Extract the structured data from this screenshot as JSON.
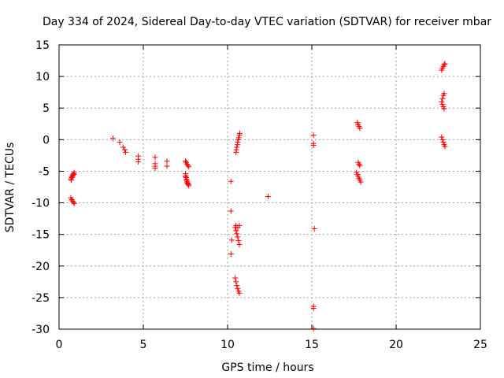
{
  "chart_data": {
    "type": "scatter",
    "title": "Day 334 of 2024, Sidereal Day-to-day VTEC variation (SDTVAR) for receiver mbar",
    "xlabel": "GPS time / hours",
    "ylabel": "SDTVAR / TECUs",
    "xlim": [
      0,
      25
    ],
    "ylim": [
      -30,
      15
    ],
    "xticks": [
      0,
      5,
      10,
      15,
      20,
      25
    ],
    "yticks": [
      -30,
      -25,
      -20,
      -15,
      -10,
      -5,
      0,
      5,
      10,
      15
    ],
    "grid": true,
    "marker": "+",
    "marker_color": "#ff0000",
    "series": [
      {
        "name": "SDTVAR",
        "points": [
          [
            0.7,
            -6.2
          ],
          [
            0.75,
            -5.9
          ],
          [
            0.8,
            -5.6
          ],
          [
            0.85,
            -5.4
          ],
          [
            0.9,
            -5.2
          ],
          [
            0.72,
            -6.4
          ],
          [
            0.78,
            -6.0
          ],
          [
            0.82,
            -5.7
          ],
          [
            0.88,
            -5.5
          ],
          [
            0.7,
            -9.2
          ],
          [
            0.75,
            -9.5
          ],
          [
            0.8,
            -9.7
          ],
          [
            0.85,
            -9.9
          ],
          [
            0.9,
            -10.1
          ],
          [
            3.2,
            0.2
          ],
          [
            3.6,
            -0.4
          ],
          [
            3.8,
            -1.2
          ],
          [
            3.9,
            -1.6
          ],
          [
            3.95,
            -2.0
          ],
          [
            4.7,
            -2.6
          ],
          [
            4.7,
            -3.1
          ],
          [
            4.7,
            -3.5
          ],
          [
            5.7,
            -2.8
          ],
          [
            5.7,
            -3.8
          ],
          [
            5.7,
            -4.2
          ],
          [
            5.7,
            -4.5
          ],
          [
            6.4,
            -3.4
          ],
          [
            6.4,
            -4.2
          ],
          [
            7.5,
            -3.4
          ],
          [
            7.55,
            -3.6
          ],
          [
            7.6,
            -3.9
          ],
          [
            7.65,
            -4.1
          ],
          [
            7.7,
            -4.3
          ],
          [
            7.5,
            -5.4
          ],
          [
            7.52,
            -5.7
          ],
          [
            7.55,
            -6.0
          ],
          [
            7.58,
            -6.3
          ],
          [
            7.6,
            -6.6
          ],
          [
            7.63,
            -6.9
          ],
          [
            7.66,
            -7.1
          ],
          [
            7.7,
            -7.3
          ],
          [
            7.5,
            -5.9
          ],
          [
            7.55,
            -6.4
          ],
          [
            7.6,
            -6.8
          ],
          [
            7.65,
            -7.0
          ],
          [
            10.2,
            -6.6
          ],
          [
            10.2,
            -11.3
          ],
          [
            10.25,
            -15.9
          ],
          [
            10.2,
            -18.1
          ],
          [
            10.45,
            -13.9
          ],
          [
            10.5,
            -14.4
          ],
          [
            10.55,
            -14.9
          ],
          [
            10.6,
            -15.4
          ],
          [
            10.65,
            -16.0
          ],
          [
            10.7,
            -16.6
          ],
          [
            10.5,
            -13.6
          ],
          [
            10.6,
            -13.9
          ],
          [
            10.7,
            -13.6
          ],
          [
            10.45,
            -21.9
          ],
          [
            10.5,
            -22.5
          ],
          [
            10.55,
            -23.1
          ],
          [
            10.6,
            -23.6
          ],
          [
            10.65,
            -24.0
          ],
          [
            10.7,
            -24.3
          ],
          [
            10.5,
            -2.0
          ],
          [
            10.52,
            -1.6
          ],
          [
            10.55,
            -1.2
          ],
          [
            10.58,
            -0.8
          ],
          [
            10.6,
            -0.4
          ],
          [
            10.63,
            0.0
          ],
          [
            10.66,
            0.3
          ],
          [
            10.7,
            0.7
          ],
          [
            10.72,
            1.0
          ],
          [
            12.4,
            -9.0
          ],
          [
            15.1,
            0.7
          ],
          [
            15.1,
            -0.6
          ],
          [
            15.1,
            -0.9
          ],
          [
            15.15,
            -14.1
          ],
          [
            15.1,
            -26.4
          ],
          [
            15.1,
            -26.7
          ],
          [
            15.1,
            -29.9
          ],
          [
            17.7,
            2.7
          ],
          [
            17.75,
            2.4
          ],
          [
            17.8,
            2.1
          ],
          [
            17.85,
            1.8
          ],
          [
            17.75,
            -3.6
          ],
          [
            17.8,
            -3.9
          ],
          [
            17.85,
            -4.1
          ],
          [
            17.65,
            -5.2
          ],
          [
            17.7,
            -5.5
          ],
          [
            17.75,
            -5.8
          ],
          [
            17.8,
            -6.1
          ],
          [
            17.85,
            -6.4
          ],
          [
            17.9,
            -6.7
          ],
          [
            22.7,
            11.0
          ],
          [
            22.75,
            11.3
          ],
          [
            22.8,
            11.6
          ],
          [
            22.85,
            11.9
          ],
          [
            22.9,
            12.0
          ],
          [
            22.7,
            6.0
          ],
          [
            22.75,
            6.5
          ],
          [
            22.8,
            7.0
          ],
          [
            22.85,
            7.3
          ],
          [
            22.75,
            5.6
          ],
          [
            22.8,
            5.2
          ],
          [
            22.85,
            4.9
          ],
          [
            22.7,
            0.4
          ],
          [
            22.75,
            0.0
          ],
          [
            22.8,
            -0.4
          ],
          [
            22.85,
            -0.8
          ],
          [
            22.9,
            -1.1
          ]
        ]
      }
    ]
  }
}
